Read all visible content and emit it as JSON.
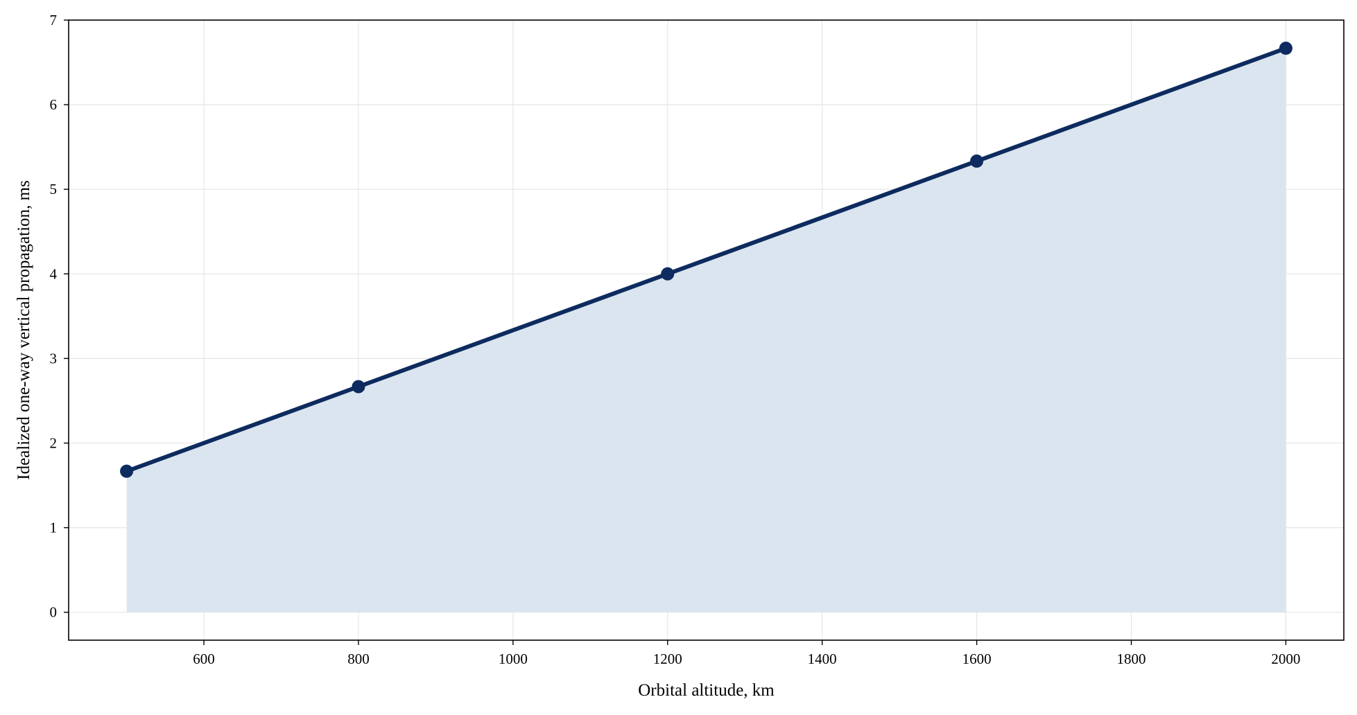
{
  "chart_data": {
    "type": "area",
    "title": "",
    "xlabel": "Orbital altitude, km",
    "ylabel": "Idealized one-way vertical propagation, ms",
    "xlim": [
      425,
      2075
    ],
    "ylim": [
      -0.33,
      7.0
    ],
    "xticks": [
      600,
      800,
      1000,
      1200,
      1400,
      1600,
      1800,
      2000
    ],
    "yticks": [
      0,
      1,
      2,
      3,
      4,
      5,
      6,
      7
    ],
    "grid": true,
    "legend": "none",
    "series": [
      {
        "x": [
          500,
          800,
          1200,
          1600,
          2000
        ],
        "y": [
          1.667,
          2.667,
          4.0,
          5.333,
          6.667
        ],
        "line_color": "#0d2b5e",
        "fill_color": "#dbe5f0",
        "marker": "circle"
      }
    ]
  }
}
